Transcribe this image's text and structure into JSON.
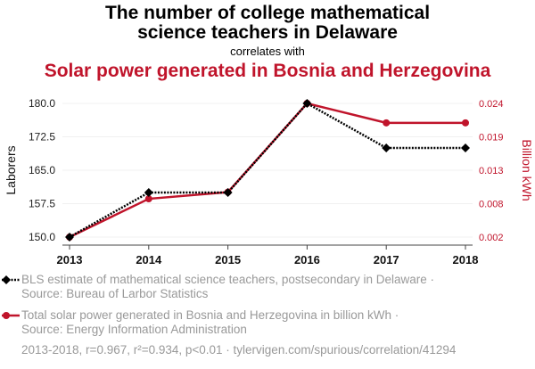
{
  "title_line1": "The number of college mathematical",
  "title_line2": "science teachers in Delaware",
  "correlates": "correlates with",
  "title2": "Solar power generated in Bosnia and Herzegovina",
  "legend": [
    {
      "line1": "BLS estimate of mathematical science teachers, postsecondary in Delaware ·",
      "line2": "Source: Bureau of Larbor Statistics"
    },
    {
      "line1": "Total solar power generated in Bosnia and Herzegovina in billion kWh ·",
      "line2": "Source: Energy Information Administration"
    }
  ],
  "footer": "2013-2018, r=0.967, r²=0.934, p<0.01 · tylervigen.com/spurious/correlation/41294",
  "colors": {
    "series1": "#000000",
    "series2": "#c0142b"
  },
  "chart_data": {
    "type": "line",
    "x": [
      "2013",
      "2014",
      "2015",
      "2016",
      "2017",
      "2018"
    ],
    "ylabel": "Laborers",
    "y2label": "Billion kWh",
    "ylim": [
      150,
      180
    ],
    "y2lim": [
      0.002,
      0.024
    ],
    "yticks": [
      "150.0",
      "157.5",
      "165.0",
      "172.5",
      "180.0"
    ],
    "y2ticks": [
      "0.002",
      "0.008",
      "0.013",
      "0.019",
      "0.024"
    ],
    "series": [
      {
        "name": "BLS estimate of mathematical science teachers, postsecondary in Delaware",
        "axis": "left",
        "values": [
          150,
          160,
          160,
          180,
          170,
          170
        ]
      },
      {
        "name": "Total solar power generated in Bosnia and Herzegovina in billion kWh",
        "axis": "right",
        "values": [
          0.002,
          0.0083,
          0.0094,
          0.024,
          0.0208,
          0.0208
        ]
      }
    ]
  }
}
